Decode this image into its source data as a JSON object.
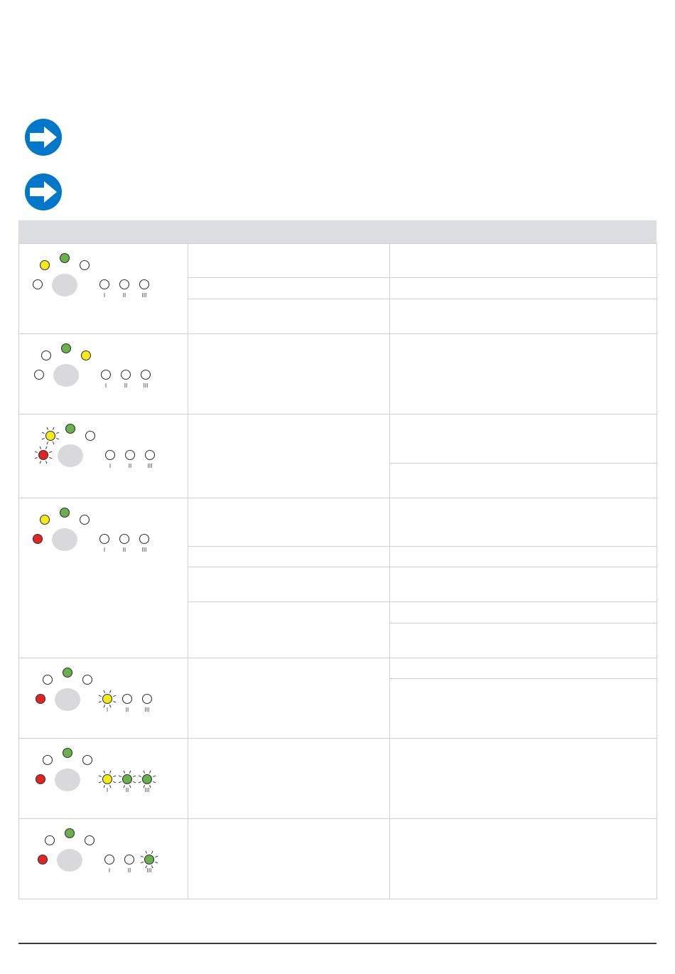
{
  "notes": [
    {
      "icon": "arrow-right-icon",
      "color": "#0077c8"
    },
    {
      "icon": "arrow-right-icon",
      "color": "#0077c8"
    }
  ],
  "colors": {
    "yellow": "#f5ea14",
    "green": "#6ab04c",
    "red": "#e52421",
    "off": "#ffffff",
    "button": "#d9d9db",
    "header": "#dcdde0"
  },
  "led_labels": [
    "I",
    "II",
    "III"
  ],
  "rows": [
    {
      "leds": {
        "left_top": "yellow",
        "center_top": "green",
        "right_top": "off",
        "left_mid": "off",
        "level1": "off",
        "level2": "off",
        "level3": "off"
      }
    },
    {
      "leds": {
        "left_top": "off",
        "center_top": "green",
        "right_top": "yellow",
        "left_mid": "off",
        "level1": "off",
        "level2": "off",
        "level3": "off"
      }
    },
    {
      "leds": {
        "left_top": "yellow-blink",
        "center_top": "green",
        "right_top": "off",
        "left_mid": "red-blink",
        "level1": "off",
        "level2": "off",
        "level3": "off"
      }
    },
    {
      "leds": {
        "left_top": "yellow",
        "center_top": "green",
        "right_top": "off",
        "left_mid": "red",
        "level1": "off",
        "level2": "off",
        "level3": "off"
      }
    },
    {
      "leds": {
        "left_top": "off",
        "center_top": "green",
        "right_top": "off",
        "left_mid": "red",
        "level1": "yellow-blink",
        "level2": "off",
        "level3": "off"
      }
    },
    {
      "leds": {
        "left_top": "off",
        "center_top": "green",
        "right_top": "off",
        "left_mid": "red",
        "level1": "yellow-blink",
        "level2": "green-blink",
        "level3": "green-blink"
      }
    },
    {
      "leds": {
        "left_top": "off",
        "center_top": "green",
        "right_top": "off",
        "left_mid": "red",
        "level1": "off",
        "level2": "off",
        "level3": "green-blink"
      }
    }
  ]
}
